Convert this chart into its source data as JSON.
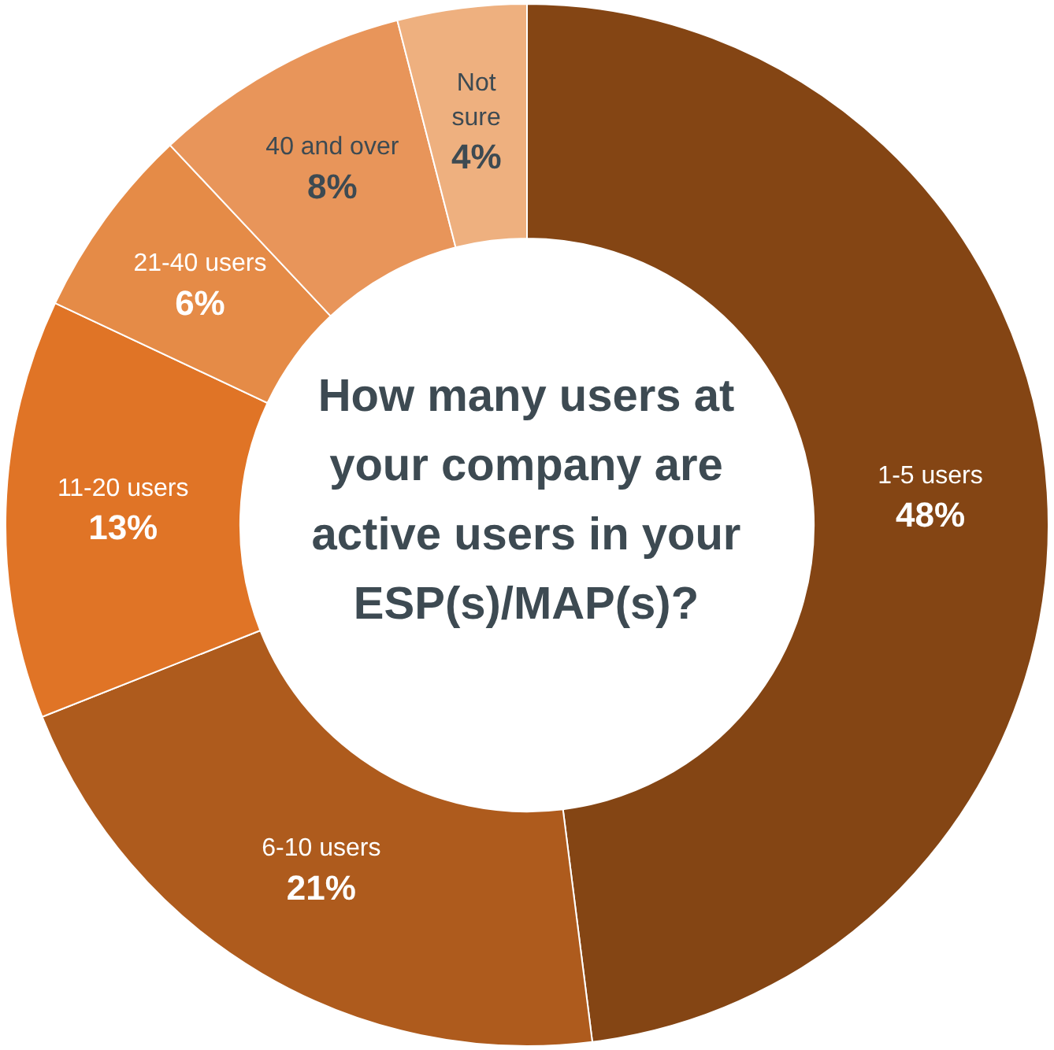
{
  "chart_data": {
    "type": "donut",
    "title": "How many users at your company are active users in your ESP(s)/MAP(s)?",
    "categories": [
      "1-5 users",
      "6-10 users",
      "11-20 users",
      "21-40 users",
      "40 and over",
      "Not sure"
    ],
    "values": [
      48,
      21,
      13,
      6,
      8,
      4
    ],
    "value_labels": [
      "48%",
      "21%",
      "13%",
      "6%",
      "8%",
      "4%"
    ],
    "colors": [
      "#844514",
      "#ae5b1d",
      "#e07426",
      "#e58b47",
      "#e8955a",
      "#eeb07f"
    ],
    "legend": false
  }
}
